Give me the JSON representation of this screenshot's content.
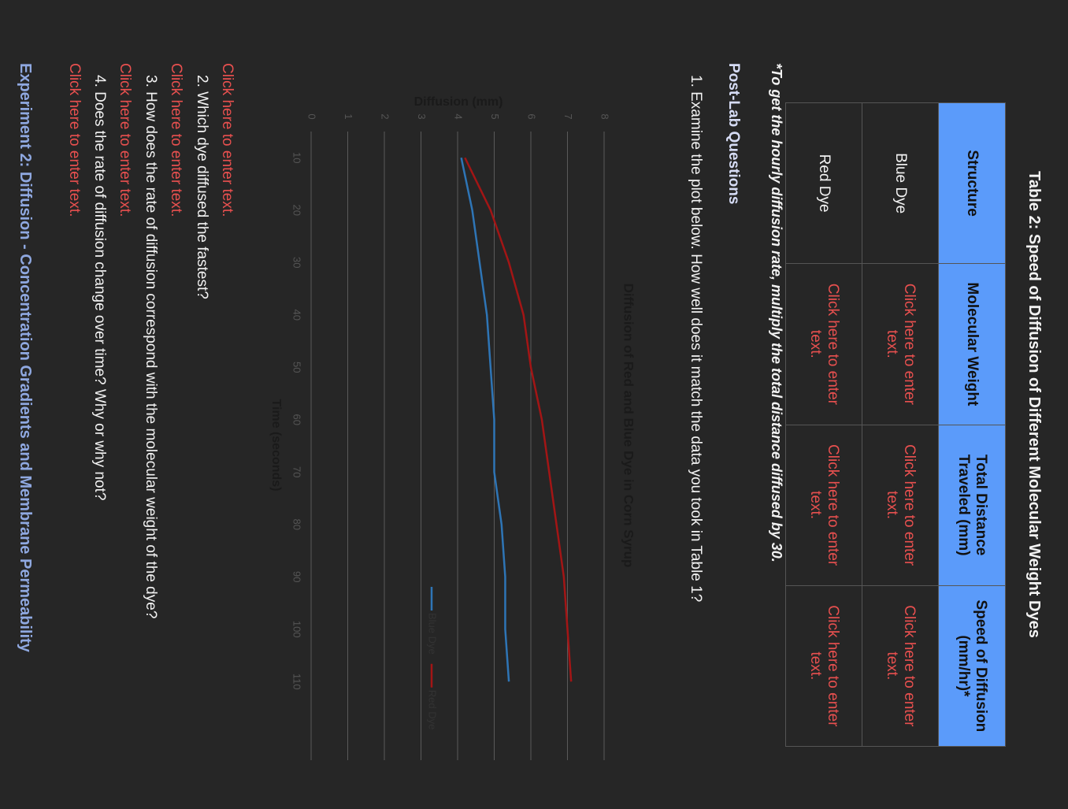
{
  "table": {
    "title": "Table 2: Speed of Diffusion of Different Molecular Weight Dyes",
    "header": [
      "Structure",
      "Molecular Weight",
      "Total Distance Traveled (mm)",
      "Speed of Diffusion (mm/hr)*"
    ],
    "rows": [
      [
        "Blue Dye",
        "Click here to enter text.",
        "Click here to enter text.",
        "Click here to enter text."
      ],
      [
        "Red Dye",
        "Click here to enter text.",
        "Click here to enter text.",
        "Click here to enter text."
      ]
    ]
  },
  "footnote": "*To get the hourly diffusion rate, multiply the total distance diffused by 30.",
  "section_heading": "Post-Lab Questions",
  "questions": [
    {
      "text": "1. Examine the plot below. How well does it match the data you took in Table 1?",
      "answer": "Click here to enter text."
    },
    {
      "text": "2. Which dye diffused the fastest?",
      "answer": "Click here to enter text."
    },
    {
      "text": "3. How does the rate of diffusion correspond with the molecular weight of the dye?",
      "answer": "Click here to enter text."
    },
    {
      "text": "4. Does the rate of diffusion change over time?  Why or why not?",
      "answer": "Click here to enter text."
    }
  ],
  "next_heading": "Experiment 2: Diffusion - Concentration Gradients and Membrane Permeability",
  "chart_data": {
    "type": "line",
    "title": "Diffusion of Red and Blue Dye in Corn Syrup",
    "x_label": "Time (seconds)",
    "y_label": "Diffusion (mm)",
    "x": [
      10,
      20,
      30,
      40,
      50,
      60,
      70,
      80,
      90,
      100,
      110
    ],
    "series": [
      {
        "name": "Blue Dye",
        "color": "#2e75b6",
        "values": [
          4.1,
          4.4,
          4.6,
          4.8,
          4.9,
          5.0,
          5.0,
          5.2,
          5.3,
          5.3,
          5.4
        ]
      },
      {
        "name": "Red Dye",
        "color": "#a31515",
        "values": [
          4.2,
          4.9,
          5.4,
          5.8,
          6.0,
          6.3,
          6.5,
          6.7,
          6.9,
          7.0,
          7.1
        ]
      }
    ],
    "xlim": [
      5,
      125
    ],
    "xticks": [
      10,
      20,
      30,
      40,
      50,
      60,
      70,
      80,
      90,
      100,
      110
    ],
    "ylim": [
      0,
      8
    ],
    "yticks": [
      0,
      1,
      2,
      3,
      4,
      5,
      6,
      7,
      8
    ],
    "grid": true,
    "legend": "bottom"
  }
}
